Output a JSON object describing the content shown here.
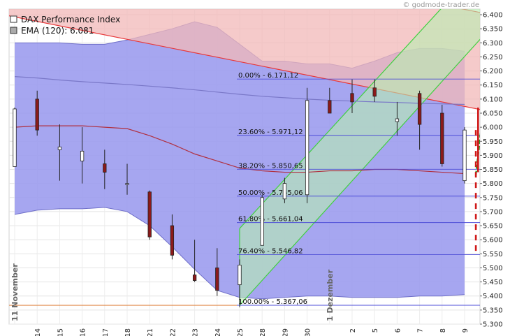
{
  "watermark": "© godmode-trader.de",
  "chart_data": {
    "type": "candlestick",
    "legend": [
      {
        "label": "DAX Performance Index",
        "swatch": "#ffffff"
      },
      {
        "label": "EMA (120): 6.081",
        "swatch": "#aaaaaa"
      }
    ],
    "ylim": [
      5300,
      6420
    ],
    "yticks": [
      "6.400",
      "6.350",
      "6.300",
      "6.250",
      "6.200",
      "6.150",
      "6.100",
      "6.050",
      "6.000",
      "5.950",
      "5.900",
      "5.850",
      "5.800",
      "5.750",
      "5.700",
      "5.650",
      "5.600",
      "5.550",
      "5.500",
      "5.450",
      "5.400",
      "5.350",
      "5.300"
    ],
    "x_labels": [
      "11 November",
      "14",
      "15",
      "16",
      "17",
      "18",
      "21",
      "22",
      "23",
      "24",
      "25",
      "28",
      "29",
      "30",
      "1 Dezember",
      "2",
      "5",
      "6",
      "7",
      "8",
      "9"
    ],
    "candles": [
      {
        "o": 5860,
        "h": 6070,
        "l": 5860,
        "c": 6065
      },
      {
        "o": 6100,
        "h": 6130,
        "l": 5970,
        "c": 5990
      },
      {
        "o": 5920,
        "h": 6010,
        "l": 5810,
        "c": 5930
      },
      {
        "o": 5880,
        "h": 6000,
        "l": 5800,
        "c": 5915
      },
      {
        "o": 5870,
        "h": 5920,
        "l": 5780,
        "c": 5840
      },
      {
        "o": 5800,
        "h": 5870,
        "l": 5760,
        "c": 5800
      },
      {
        "o": 5770,
        "h": 5775,
        "l": 5600,
        "c": 5610
      },
      {
        "o": 5650,
        "h": 5690,
        "l": 5530,
        "c": 5545
      },
      {
        "o": 5475,
        "h": 5600,
        "l": 5450,
        "c": 5455
      },
      {
        "o": 5500,
        "h": 5570,
        "l": 5400,
        "c": 5420
      },
      {
        "o": 5440,
        "h": 5530,
        "l": 5360,
        "c": 5510
      },
      {
        "o": 5580,
        "h": 5760,
        "l": 5580,
        "c": 5750
      },
      {
        "o": 5745,
        "h": 5820,
        "l": 5730,
        "c": 5800
      },
      {
        "o": 5760,
        "h": 6140,
        "l": 5730,
        "c": 6095
      },
      {
        "o": 6095,
        "h": 6140,
        "l": 6050,
        "c": 6050
      },
      {
        "o": 6120,
        "h": 6170,
        "l": 6050,
        "c": 6090
      },
      {
        "o": 6140,
        "h": 6170,
        "l": 6090,
        "c": 6110
      },
      {
        "o": 6020,
        "h": 6090,
        "l": 5970,
        "c": 6030
      },
      {
        "o": 6120,
        "h": 6130,
        "l": 5920,
        "c": 6010
      },
      {
        "o": 6050,
        "h": 6080,
        "l": 5860,
        "c": 5870
      },
      {
        "o": 5810,
        "h": 6000,
        "l": 5800,
        "c": 5990
      }
    ],
    "ema": {
      "name": "EMA (120)",
      "values": [
        6180,
        6175,
        6168,
        6162,
        6157,
        6152,
        6146,
        6140,
        6133,
        6125,
        6117,
        6110,
        6105,
        6100,
        6096,
        6093,
        6090,
        6088,
        6085,
        6083,
        6081
      ]
    },
    "envelope_upper": [
      6300,
      6300,
      6300,
      6295,
      6295,
      6310,
      6330,
      6350,
      6375,
      6355,
      6295,
      6235,
      6235,
      6225,
      6225,
      6210,
      6235,
      6265,
      6280,
      6280,
      6270
    ],
    "envelope_lower": [
      5690,
      5705,
      5710,
      5710,
      5715,
      5700,
      5650,
      5575,
      5495,
      5420,
      5395,
      5390,
      5395,
      5400,
      5400,
      5395,
      5395,
      5395,
      5400,
      5400,
      5405
    ],
    "band_mid": [
      6000,
      6005,
      6005,
      6005,
      6000,
      5995,
      5970,
      5940,
      5905,
      5880,
      5855,
      5845,
      5840,
      5840,
      5845,
      5845,
      5850,
      5850,
      5845,
      5840,
      5835
    ],
    "fibonacci": {
      "levels": [
        {
          "label": "0.00% - 6.171,12",
          "value": 6171.12
        },
        {
          "label": "23.60% - 5.971,12",
          "value": 5971.12
        },
        {
          "label": "38.20% - 5.850,65",
          "value": 5850.65
        },
        {
          "label": "50.00% - 5.755,06",
          "value": 5755.06
        },
        {
          "label": "61.80% - 5.661,04",
          "value": 5661.04
        },
        {
          "label": "76.40% - 5.546,82",
          "value": 5546.82
        },
        {
          "label": "100.00% - 5.367,06",
          "value": 5367.06
        }
      ]
    },
    "down_channel": {
      "upper_start": [
        -0.5,
        6400
      ],
      "upper_end": [
        21,
        6058
      ],
      "lower_start": [
        4.5,
        6410
      ],
      "lower_end": [
        21,
        5830
      ]
    },
    "up_channel": {
      "lower_start": [
        10,
        5367
      ],
      "lower_end": [
        21,
        6340
      ],
      "upper_start": [
        10,
        5640
      ],
      "upper_end": [
        21,
        6600
      ]
    },
    "support_line": 5367,
    "projection": {
      "green_dashed": [
        [
          20.5,
          5830
        ],
        [
          21,
          6180
        ]
      ],
      "red_dashed": [
        [
          20.5,
          5990
        ],
        [
          20.5,
          5560
        ]
      ],
      "red_solid": [
        [
          20.6,
          5840
        ],
        [
          20.6,
          6070
        ]
      ]
    },
    "colors": {
      "up_candle": "#ffffff",
      "down_candle": "#8b1a1a",
      "envelope_fill": "#9a9aee",
      "down_channel_fill": "#f2b8b8",
      "down_channel_line": "#e8383a",
      "up_channel_fill": "#b8eeb0",
      "up_channel_line": "#40d040",
      "fib_line": "#4f4fd8",
      "support_line": "#e08a4a",
      "band_mid": "#b03040",
      "ema": "#7a78c8"
    }
  }
}
